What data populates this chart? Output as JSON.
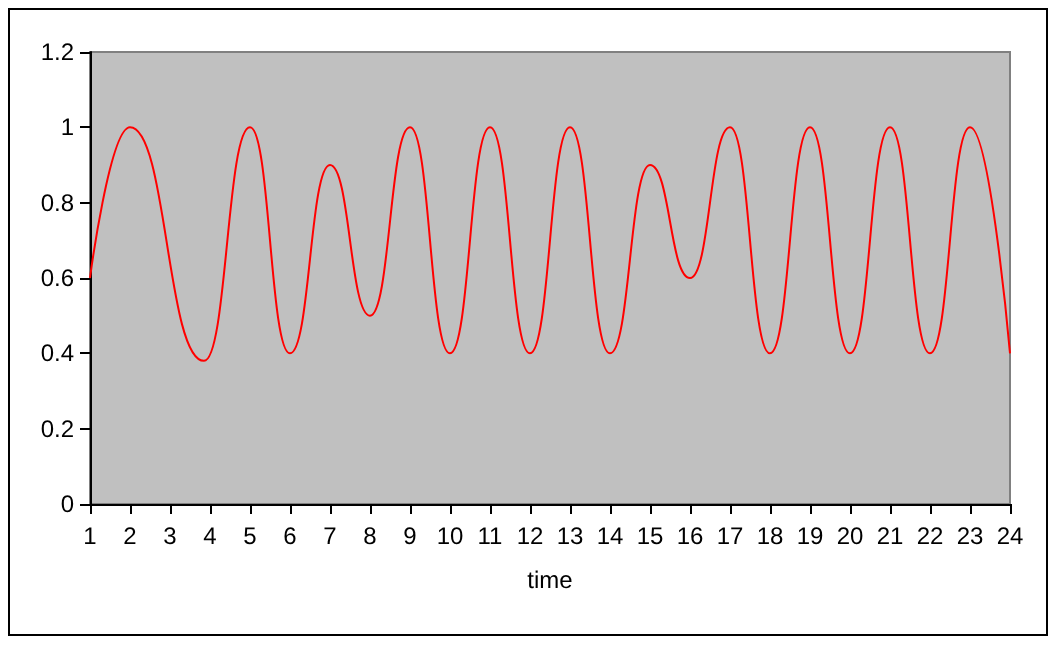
{
  "chart_data": {
    "type": "line",
    "xlabel": "time",
    "x": [
      1,
      2,
      3.85,
      5,
      6,
      7,
      8,
      9,
      10,
      11,
      12,
      13,
      14,
      15,
      16,
      17,
      18,
      19,
      20,
      21,
      22,
      23,
      24
    ],
    "series": [
      {
        "color": "#ff0000",
        "values": [
          0.6,
          1.0,
          0.38,
          1.0,
          0.4,
          0.9,
          0.5,
          1.0,
          0.4,
          1.0,
          0.4,
          1.0,
          0.4,
          0.9,
          0.6,
          1.0,
          0.4,
          1.0,
          0.4,
          1.0,
          0.4,
          1.0,
          0.4
        ]
      }
    ],
    "xlim": [
      1,
      24
    ],
    "xticks": [
      1,
      2,
      3,
      4,
      5,
      6,
      7,
      8,
      9,
      10,
      11,
      12,
      13,
      14,
      15,
      16,
      17,
      18,
      19,
      20,
      21,
      22,
      23,
      24
    ],
    "ylim": [
      0,
      1.2
    ],
    "yticks": [
      0,
      0.2,
      0.4,
      0.6,
      0.8,
      1,
      1.2
    ],
    "marker": "none",
    "line_style": "solid"
  }
}
